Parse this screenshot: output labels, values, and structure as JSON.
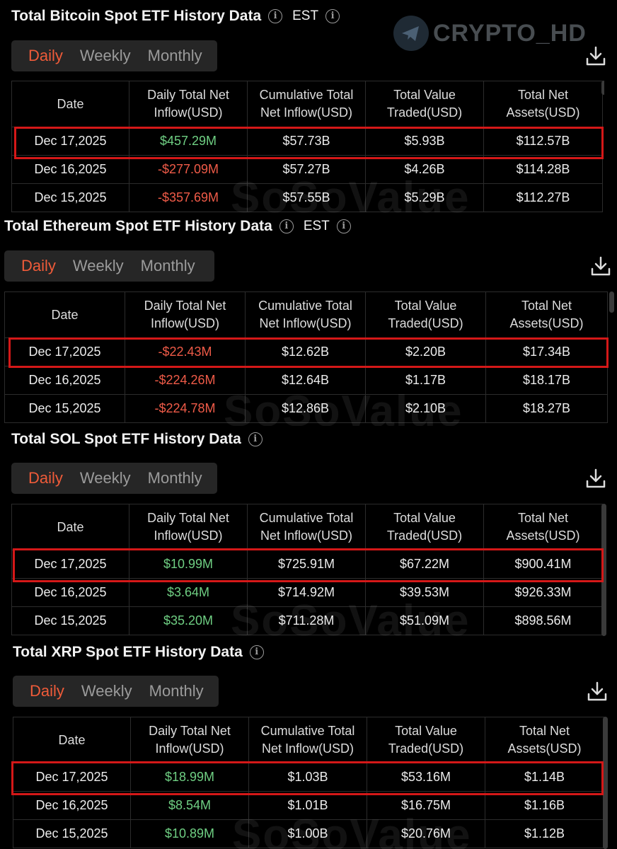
{
  "watermark": {
    "brand": "CRYPTO_HD",
    "overlay": "SoSoValue"
  },
  "colors": {
    "accent": "#ef5b39",
    "positive": "#6fcf83",
    "negative": "#ef5b48",
    "highlight": "#d41818"
  },
  "columns": [
    "Date",
    "Daily Total Net Inflow(USD)",
    "Cumulative Total Net Inflow(USD)",
    "Total Value Traded(USD)",
    "Total Net Assets(USD)"
  ],
  "tabs": [
    "Daily",
    "Weekly",
    "Monthly"
  ],
  "sections": [
    {
      "title": "Total Bitcoin Spot ETF History Data",
      "tz": "EST",
      "rows": [
        [
          "Dec 17,2025",
          "$457.29M",
          "$57.73B",
          "$5.93B",
          "$112.57B"
        ],
        [
          "Dec 16,2025",
          "-$277.09M",
          "$57.27B",
          "$4.26B",
          "$114.28B"
        ],
        [
          "Dec 15,2025",
          "-$357.69M",
          "$57.55B",
          "$5.29B",
          "$112.27B"
        ]
      ]
    },
    {
      "title": "Total Ethereum Spot ETF History Data",
      "tz": "EST",
      "rows": [
        [
          "Dec 17,2025",
          "-$22.43M",
          "$12.62B",
          "$2.20B",
          "$17.34B"
        ],
        [
          "Dec 16,2025",
          "-$224.26M",
          "$12.64B",
          "$1.17B",
          "$18.17B"
        ],
        [
          "Dec 15,2025",
          "-$224.78M",
          "$12.86B",
          "$2.10B",
          "$18.27B"
        ]
      ]
    },
    {
      "title": "Total SOL Spot ETF History Data",
      "tz": "",
      "rows": [
        [
          "Dec 17,2025",
          "$10.99M",
          "$725.91M",
          "$67.22M",
          "$900.41M"
        ],
        [
          "Dec 16,2025",
          "$3.64M",
          "$714.92M",
          "$39.53M",
          "$926.33M"
        ],
        [
          "Dec 15,2025",
          "$35.20M",
          "$711.28M",
          "$51.09M",
          "$898.56M"
        ]
      ]
    },
    {
      "title": "Total XRP Spot ETF History Data",
      "tz": "",
      "rows": [
        [
          "Dec 17,2025",
          "$18.99M",
          "$1.03B",
          "$53.16M",
          "$1.14B"
        ],
        [
          "Dec 16,2025",
          "$8.54M",
          "$1.01B",
          "$16.75M",
          "$1.16B"
        ],
        [
          "Dec 15,2025",
          "$10.89M",
          "$1.00B",
          "$20.76M",
          "$1.12B"
        ]
      ]
    }
  ]
}
